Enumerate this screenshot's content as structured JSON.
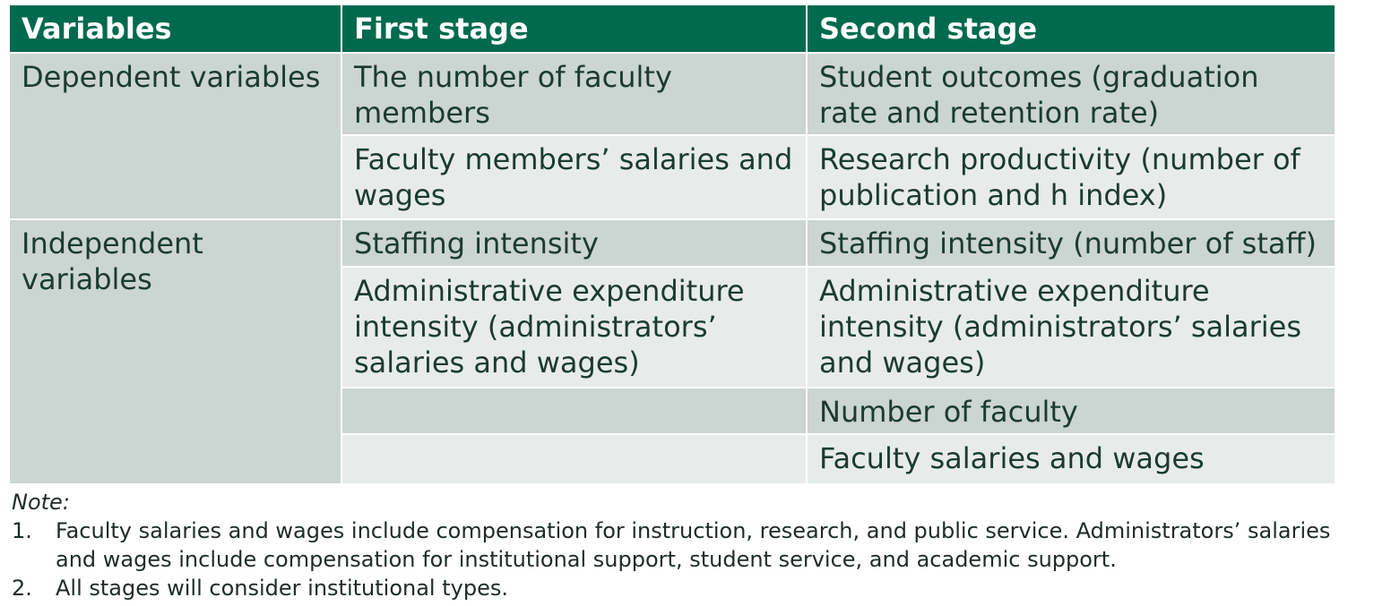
{
  "table": {
    "headers": [
      "Variables",
      "First stage",
      "Second stage"
    ],
    "dependent": {
      "label": "Dependent variables",
      "rows": [
        {
          "first": "The number of faculty members",
          "second": "Student outcomes (graduation rate and retention rate)"
        },
        {
          "first": "Faculty members’ salaries and wages",
          "second": "Research productivity (number of publication and h index)"
        }
      ]
    },
    "independent": {
      "label": "Independent variables",
      "rows": [
        {
          "first": "Staffing intensity",
          "second": "Staffing intensity (number of staff)"
        },
        {
          "first": "Administrative expenditure intensity (administrators’ salaries and wages)",
          "second": "Administrative expenditure intensity (administrators’ salaries and wages)"
        },
        {
          "first": "",
          "second": "Number of faculty"
        },
        {
          "first": "",
          "second": "Faculty salaries and wages"
        }
      ]
    }
  },
  "notes": {
    "label": "Note:",
    "items": [
      {
        "num": "1.",
        "text": "Faculty salaries and wages include compensation for instruction, research, and public service. Administrators’ salaries and wages include compensation for institutional support, student service, and academic support."
      },
      {
        "num": "2.",
        "text": "All stages will consider institutional types."
      }
    ]
  },
  "colors": {
    "header_bg": "#006a4e",
    "row_dark": "#cbd5d1",
    "row_light": "#e7ecea",
    "text": "#1c3a31"
  }
}
